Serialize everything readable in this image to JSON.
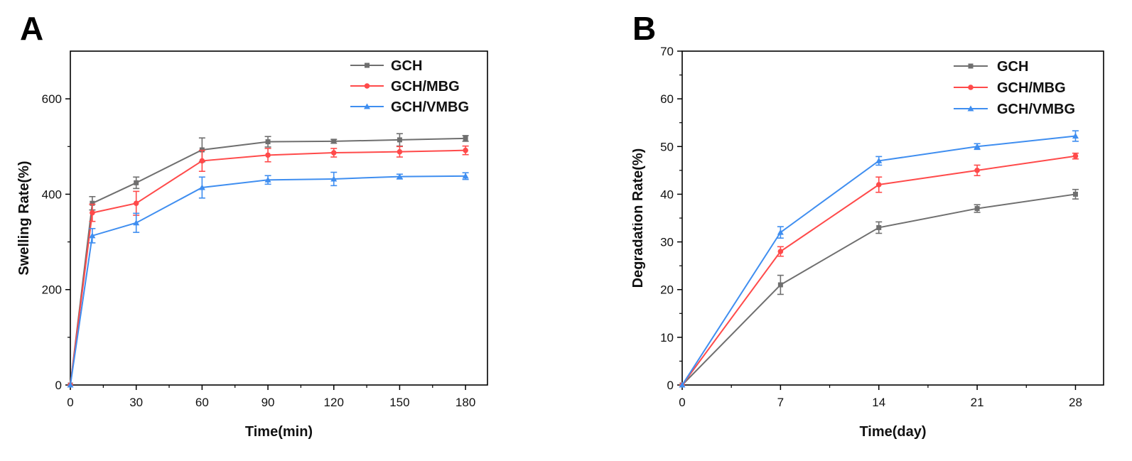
{
  "chart_data": [
    {
      "type": "line",
      "panel_label": "A",
      "xlabel": "Time(min)",
      "ylabel": "Swelling Rate(%)",
      "x": [
        0,
        10,
        30,
        60,
        90,
        120,
        150,
        180
      ],
      "xticks": [
        0,
        30,
        60,
        90,
        120,
        150,
        180
      ],
      "yticks": [
        0,
        200,
        400,
        600
      ],
      "xlim": [
        0,
        190
      ],
      "ylim": [
        0,
        700
      ],
      "legend_position": "top-right",
      "grid": false,
      "series": [
        {
          "name": "GCH",
          "color": "#6f6f6f",
          "marker": "square",
          "values": [
            0,
            381,
            424,
            493,
            510,
            511,
            514,
            517
          ],
          "errors": [
            0,
            14,
            12,
            25,
            11,
            4,
            13,
            6
          ]
        },
        {
          "name": "GCH/MBG",
          "color": "#ff4a4a",
          "marker": "circle",
          "values": [
            0,
            361,
            381,
            470,
            482,
            487,
            489,
            492
          ],
          "errors": [
            0,
            18,
            25,
            22,
            14,
            9,
            11,
            9
          ]
        },
        {
          "name": "GCH/VMBG",
          "color": "#3f8ef0",
          "marker": "triangle",
          "values": [
            0,
            313,
            340,
            414,
            430,
            432,
            437,
            438
          ],
          "errors": [
            0,
            15,
            20,
            22,
            9,
            14,
            5,
            7
          ]
        }
      ]
    },
    {
      "type": "line",
      "panel_label": "B",
      "xlabel": "Time(day)",
      "ylabel": "Degradation Rate(%)",
      "x": [
        0,
        7,
        14,
        21,
        28
      ],
      "xticks": [
        0,
        7,
        14,
        21,
        28
      ],
      "yticks": [
        0,
        10,
        20,
        30,
        40,
        50,
        60,
        70
      ],
      "xlim": [
        0,
        30
      ],
      "ylim": [
        0,
        70
      ],
      "legend_position": "top-right",
      "grid": false,
      "series": [
        {
          "name": "GCH",
          "color": "#6f6f6f",
          "marker": "square",
          "values": [
            0,
            21,
            33,
            37,
            40
          ],
          "errors": [
            0,
            2,
            1.2,
            0.8,
            1
          ]
        },
        {
          "name": "GCH/MBG",
          "color": "#ff4a4a",
          "marker": "circle",
          "values": [
            0,
            28,
            42,
            45,
            48
          ],
          "errors": [
            0,
            1,
            1.6,
            1.1,
            0.6
          ]
        },
        {
          "name": "GCH/VMBG",
          "color": "#3f8ef0",
          "marker": "triangle",
          "values": [
            0,
            32,
            47,
            50,
            52.2
          ],
          "errors": [
            0,
            1.2,
            0.9,
            0.6,
            1.1
          ]
        }
      ]
    }
  ]
}
